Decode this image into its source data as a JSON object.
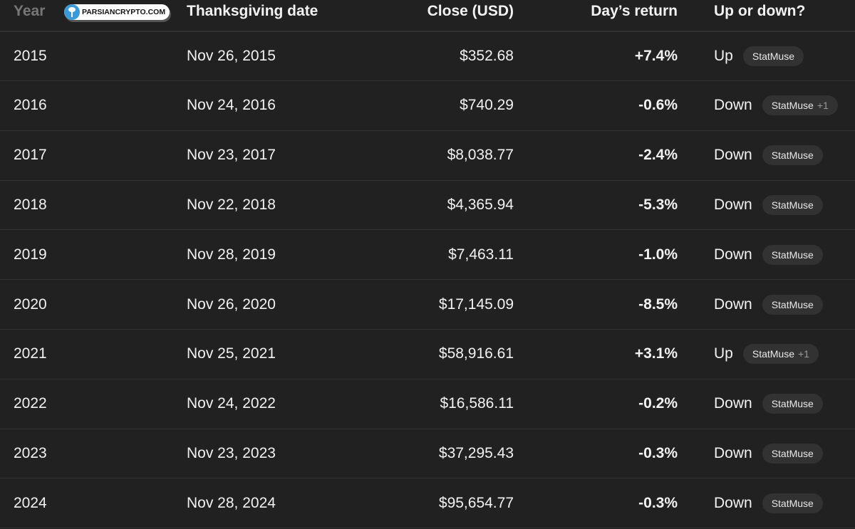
{
  "watermark": {
    "text": "PARSIANCRYPTO.COM",
    "icon": "tree-icon"
  },
  "table": {
    "headers": [
      "Year",
      "Thanksgiving date",
      "Close (USD)",
      "Day’s return",
      "Up or down?"
    ],
    "rows": [
      {
        "year": "2015",
        "date": "Nov 26, 2015",
        "close": "$352.68",
        "ret": "+7.4%",
        "dir": "Up",
        "source": "StatMuse",
        "extra": ""
      },
      {
        "year": "2016",
        "date": "Nov 24, 2016",
        "close": "$740.29",
        "ret": "-0.6%",
        "dir": "Down",
        "source": "StatMuse",
        "extra": "+1"
      },
      {
        "year": "2017",
        "date": "Nov 23, 2017",
        "close": "$8,038.77",
        "ret": "-2.4%",
        "dir": "Down",
        "source": "StatMuse",
        "extra": ""
      },
      {
        "year": "2018",
        "date": "Nov 22, 2018",
        "close": "$4,365.94",
        "ret": "-5.3%",
        "dir": "Down",
        "source": "StatMuse",
        "extra": ""
      },
      {
        "year": "2019",
        "date": "Nov 28, 2019",
        "close": "$7,463.11",
        "ret": "-1.0%",
        "dir": "Down",
        "source": "StatMuse",
        "extra": ""
      },
      {
        "year": "2020",
        "date": "Nov 26, 2020",
        "close": "$17,145.09",
        "ret": "-8.5%",
        "dir": "Down",
        "source": "StatMuse",
        "extra": ""
      },
      {
        "year": "2021",
        "date": "Nov 25, 2021",
        "close": "$58,916.61",
        "ret": "+3.1%",
        "dir": "Up",
        "source": "StatMuse",
        "extra": "+1"
      },
      {
        "year": "2022",
        "date": "Nov 24, 2022",
        "close": "$16,586.11",
        "ret": "-0.2%",
        "dir": "Down",
        "source": "StatMuse",
        "extra": ""
      },
      {
        "year": "2023",
        "date": "Nov 23, 2023",
        "close": "$37,295.43",
        "ret": "-0.3%",
        "dir": "Down",
        "source": "StatMuse",
        "extra": ""
      },
      {
        "year": "2024",
        "date": "Nov 28, 2024",
        "close": "$95,654.77",
        "ret": "-0.3%",
        "dir": "Down",
        "source": "StatMuse",
        "extra": ""
      }
    ]
  }
}
